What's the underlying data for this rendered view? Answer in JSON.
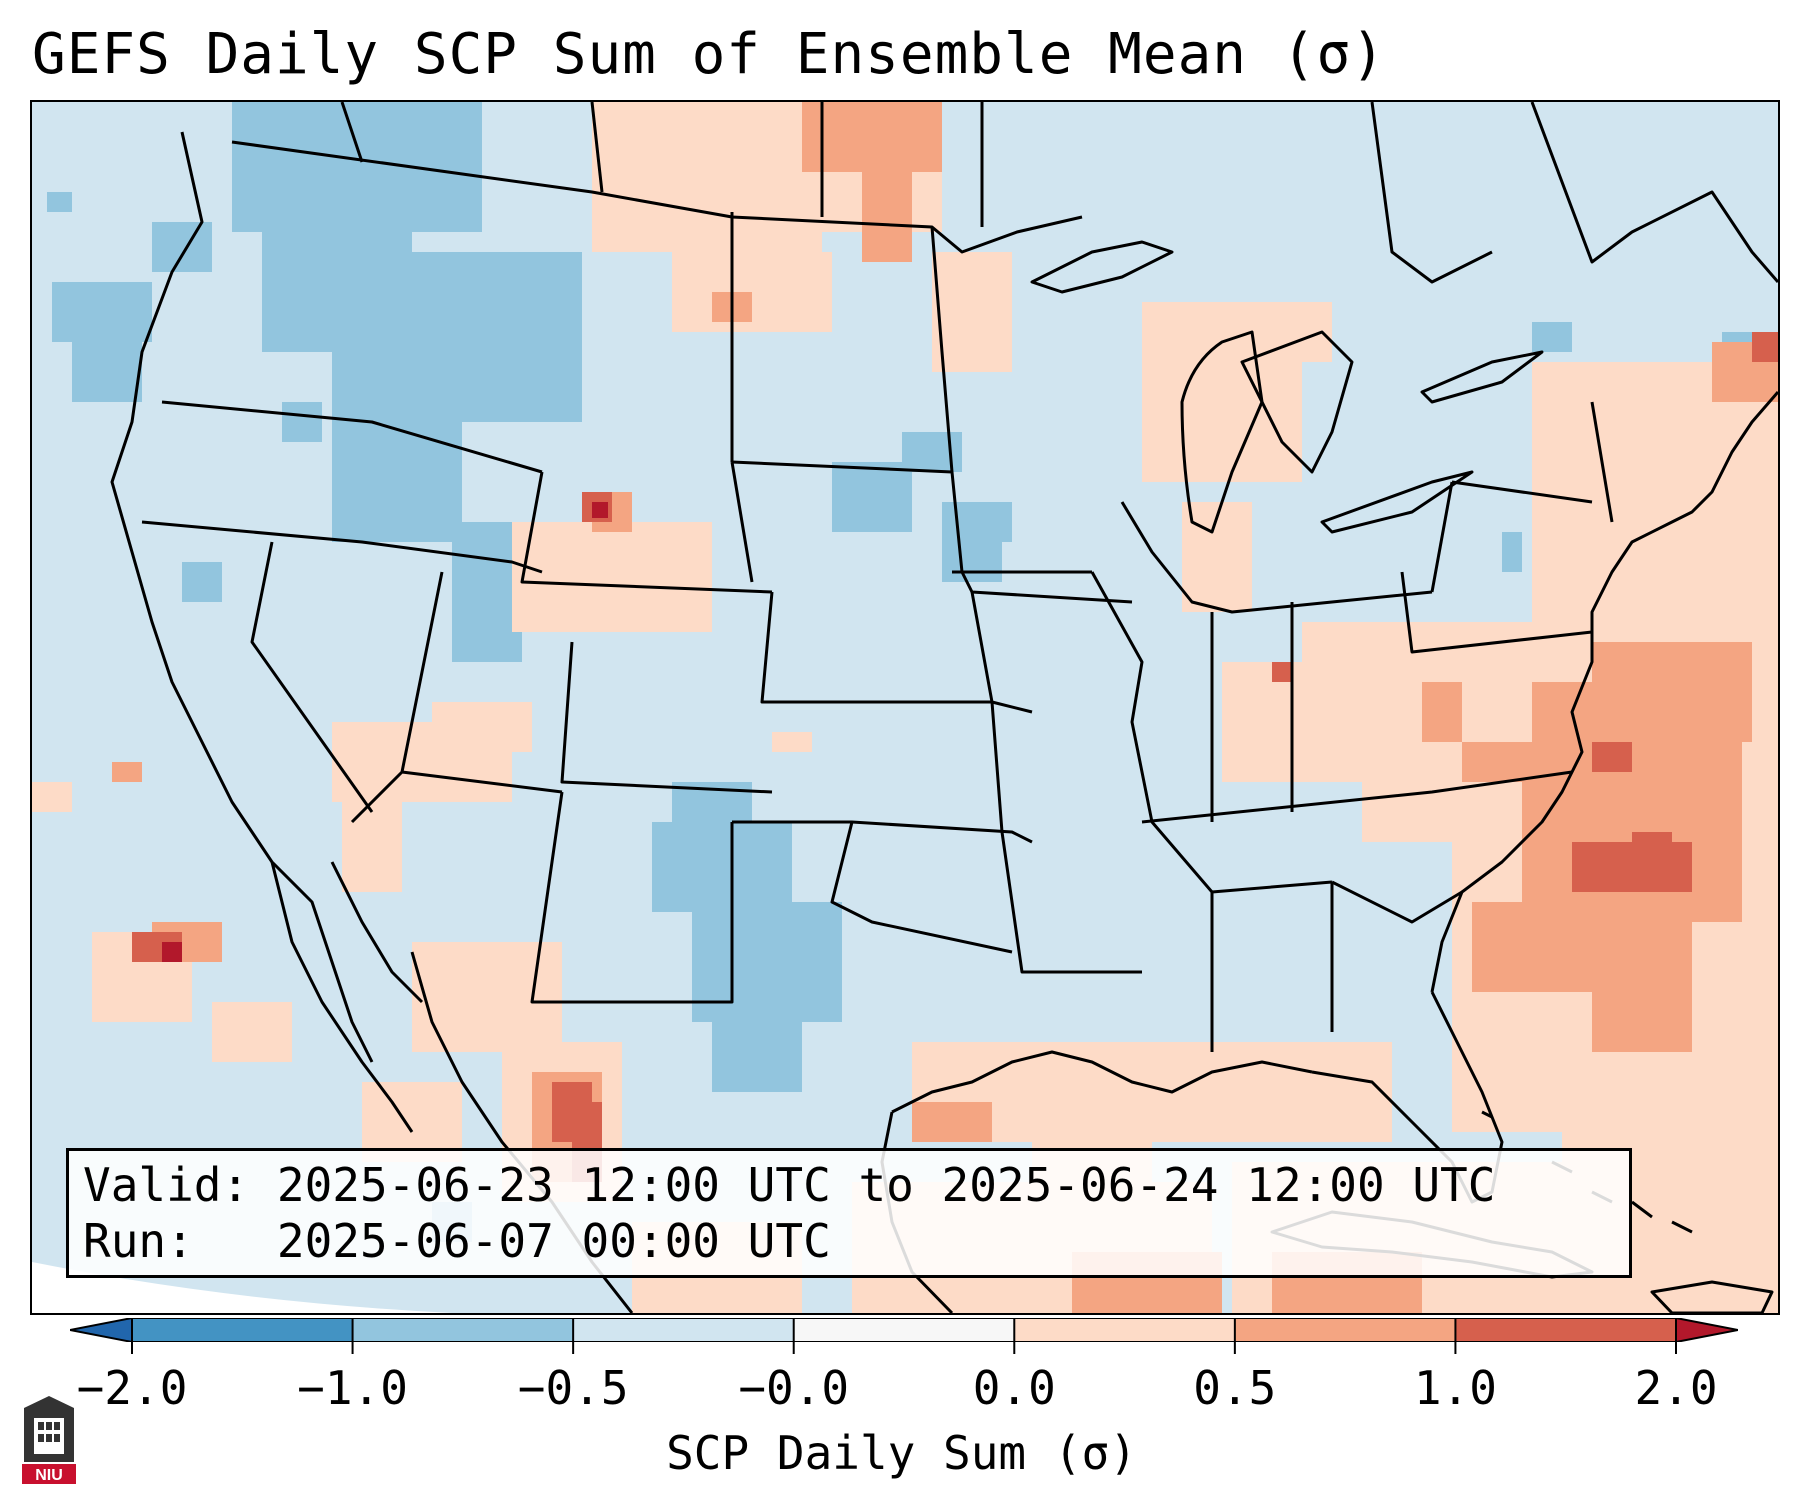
{
  "title": "GEFS Daily SCP Sum of Ensemble Mean (σ)",
  "info": {
    "valid_label": "Valid:",
    "valid_value": "2025-06-23 12:00 UTC to 2025-06-24 12:00 UTC",
    "run_label": "Run:",
    "run_value": "2025-06-07 00:00 UTC"
  },
  "colorbar": {
    "title": "SCP Daily Sum (σ)",
    "tick_labels": [
      "−2.0",
      "−1.0",
      "−0.5",
      "−0.0",
      "0.0",
      "0.5",
      "1.0",
      "2.0"
    ],
    "bins": [
      {
        "range": "-2.0 to -1.0",
        "color": "#4393c3"
      },
      {
        "range": "-1.0 to -0.5",
        "color": "#92c5de"
      },
      {
        "range": "-0.5 to -0.0",
        "color": "#d1e5f0"
      },
      {
        "range": "-0.0 to 0.0",
        "color": "#f7f7f7"
      },
      {
        "range": "0.0 to 0.5",
        "color": "#fddbc7"
      },
      {
        "range": "0.5 to 1.0",
        "color": "#f4a582"
      },
      {
        "range": "1.0 to 2.0",
        "color": "#d6604d"
      }
    ],
    "under_color": "#2166ac",
    "over_color": "#b2182b"
  },
  "logo": {
    "text": "NIU",
    "color": "#c8102e"
  },
  "map": {
    "background_color": "#d1e5f0",
    "neg_strong_color": "#92c5de",
    "pos_weak_color": "#fddbc7",
    "pos_mid_color": "#f4a582",
    "pos_strong_color": "#d6604d",
    "max_color": "#b2182b",
    "boundary_color": "#000000"
  }
}
